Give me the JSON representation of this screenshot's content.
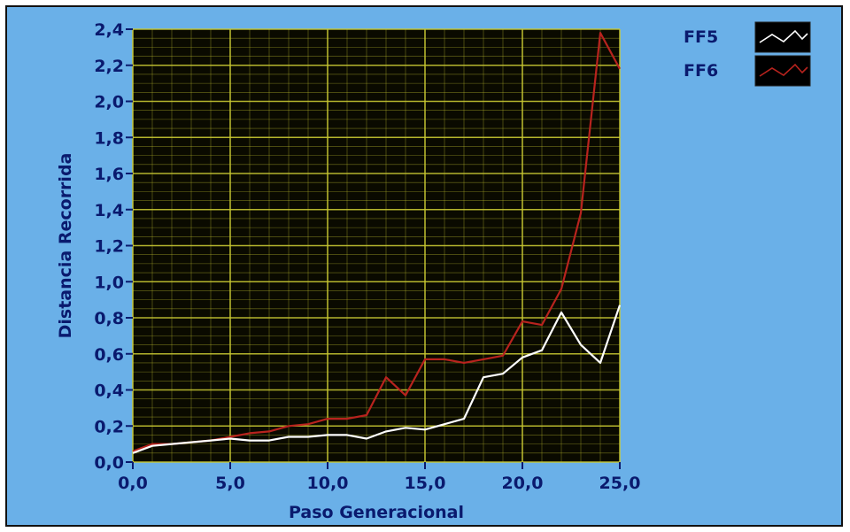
{
  "chart_data": {
    "type": "line",
    "title": "",
    "xlabel": "Paso Generacional",
    "ylabel": "Distancia Recorrida",
    "xlim": [
      0,
      25
    ],
    "ylim": [
      0,
      2.4
    ],
    "x_ticks": [
      "0,0",
      "5,0",
      "10,0",
      "15,0",
      "20,0",
      "25,0"
    ],
    "y_ticks": [
      "0,0",
      "0,2",
      "0,4",
      "0,6",
      "0,8",
      "1,0",
      "1,2",
      "1,4",
      "1,6",
      "1,8",
      "2,0",
      "2,2",
      "2,4"
    ],
    "grid": true,
    "legend_position": "top-right",
    "background_color": "#0a0a00",
    "grid_color": "#c8c832",
    "panel_color": "#6ab0e8",
    "series": [
      {
        "name": "FF5",
        "color": "#ffffff",
        "x": [
          0,
          1,
          2,
          3,
          4,
          5,
          6,
          7,
          8,
          9,
          10,
          11,
          12,
          13,
          14,
          15,
          16,
          17,
          18,
          19,
          20,
          21,
          22,
          23,
          24,
          25
        ],
        "y": [
          0.05,
          0.09,
          0.1,
          0.11,
          0.12,
          0.13,
          0.12,
          0.12,
          0.14,
          0.14,
          0.15,
          0.15,
          0.13,
          0.17,
          0.19,
          0.18,
          0.21,
          0.24,
          0.47,
          0.49,
          0.58,
          0.62,
          0.83,
          0.65,
          0.55,
          0.87
        ]
      },
      {
        "name": "FF6",
        "color": "#b8231e",
        "x": [
          0,
          1,
          2,
          3,
          4,
          5,
          6,
          7,
          8,
          9,
          10,
          11,
          12,
          13,
          14,
          15,
          16,
          17,
          18,
          19,
          20,
          21,
          22,
          23,
          24,
          25
        ],
        "y": [
          0.06,
          0.1,
          0.1,
          0.11,
          0.12,
          0.14,
          0.16,
          0.17,
          0.2,
          0.21,
          0.24,
          0.24,
          0.26,
          0.47,
          0.37,
          0.57,
          0.57,
          0.55,
          0.57,
          0.59,
          0.78,
          0.76,
          0.96,
          1.38,
          2.38,
          2.18
        ]
      }
    ]
  }
}
